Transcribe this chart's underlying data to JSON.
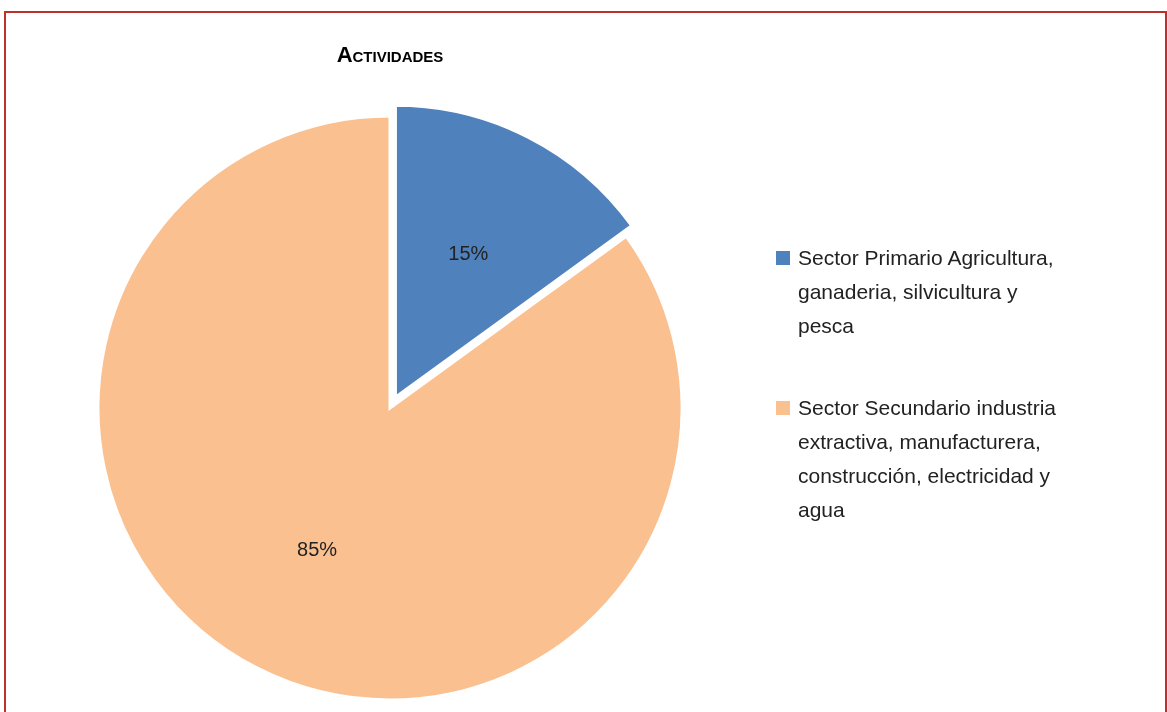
{
  "chart_data": {
    "type": "pie",
    "title": "Actividades",
    "categories": [
      "Sector Primario Agricultura, ganaderia, silvicultura y pesca",
      "Sector Secundario industria extractiva, manufacturera, construcción, electricidad y agua"
    ],
    "values": [
      15,
      85
    ],
    "colors": [
      "#4f81bd",
      "#fac090"
    ],
    "value_labels": [
      "15%",
      "85%"
    ],
    "legend": "right"
  }
}
